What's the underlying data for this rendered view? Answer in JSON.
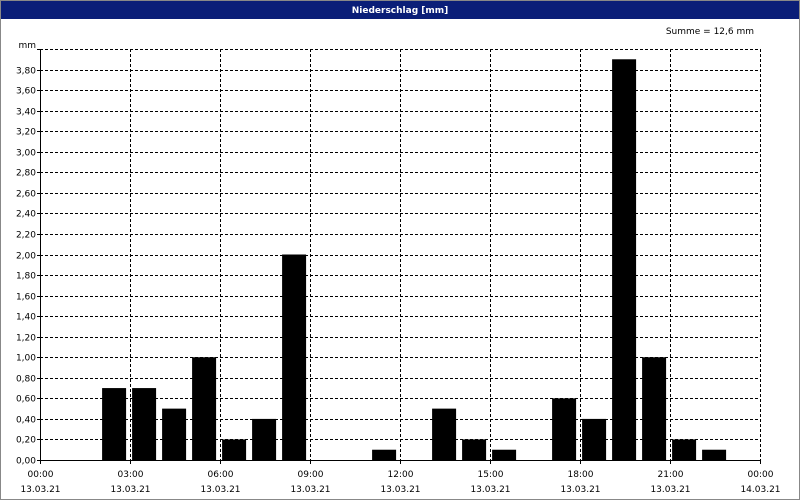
{
  "chart_data": {
    "type": "bar",
    "title": "Niederschlag [mm]",
    "y_label": "mm",
    "annotation": "Summe = 12,6 mm",
    "x": [
      0,
      1,
      2,
      3,
      4,
      5,
      6,
      7,
      8,
      9,
      10,
      11,
      12,
      13,
      14,
      15,
      16,
      17,
      18,
      19,
      20,
      21,
      22,
      23
    ],
    "values": [
      0,
      0,
      0.7,
      0.7,
      0.5,
      1.0,
      0.2,
      0.4,
      2.0,
      0,
      0,
      0.1,
      0,
      0.5,
      0.2,
      0.1,
      0,
      0.6,
      0.4,
      3.9,
      1.0,
      0.2,
      0.1,
      0
    ],
    "color": "#000000",
    "xlim": [
      0,
      24
    ],
    "xticks": [
      {
        "value": 0,
        "label": "00:00",
        "date": "13.03.21"
      },
      {
        "value": 3,
        "label": "03:00",
        "date": "13.03.21"
      },
      {
        "value": 6,
        "label": "06:00",
        "date": "13.03.21"
      },
      {
        "value": 9,
        "label": "09:00",
        "date": "13.03.21"
      },
      {
        "value": 12,
        "label": "12:00",
        "date": "13.03.21"
      },
      {
        "value": 15,
        "label": "15:00",
        "date": "13.03.21"
      },
      {
        "value": 18,
        "label": "18:00",
        "date": "13.03.21"
      },
      {
        "value": 21,
        "label": "21:00",
        "date": "13.03.21"
      },
      {
        "value": 24,
        "label": "00:00",
        "date": "14.03.21"
      }
    ],
    "ylim": [
      0,
      4
    ],
    "yticks": [
      {
        "value": 0,
        "label": "0,00"
      },
      {
        "value": 0.2,
        "label": "0,20"
      },
      {
        "value": 0.4,
        "label": "0,40"
      },
      {
        "value": 0.6,
        "label": "0,60"
      },
      {
        "value": 0.8,
        "label": "0,80"
      },
      {
        "value": 1.0,
        "label": "1,00"
      },
      {
        "value": 1.2,
        "label": "1,20"
      },
      {
        "value": 1.4,
        "label": "1,40"
      },
      {
        "value": 1.6,
        "label": "1,60"
      },
      {
        "value": 1.8,
        "label": "1,80"
      },
      {
        "value": 2.0,
        "label": "2,00"
      },
      {
        "value": 2.2,
        "label": "2,20"
      },
      {
        "value": 2.4,
        "label": "2,40"
      },
      {
        "value": 2.6,
        "label": "2,60"
      },
      {
        "value": 2.8,
        "label": "2,80"
      },
      {
        "value": 3.0,
        "label": "3,00"
      },
      {
        "value": 3.2,
        "label": "3,20"
      },
      {
        "value": 3.4,
        "label": "3,40"
      },
      {
        "value": 3.6,
        "label": "3,60"
      },
      {
        "value": 3.8,
        "label": "3,80"
      },
      {
        "value": 4.0,
        "label": ""
      }
    ],
    "grid": true
  }
}
